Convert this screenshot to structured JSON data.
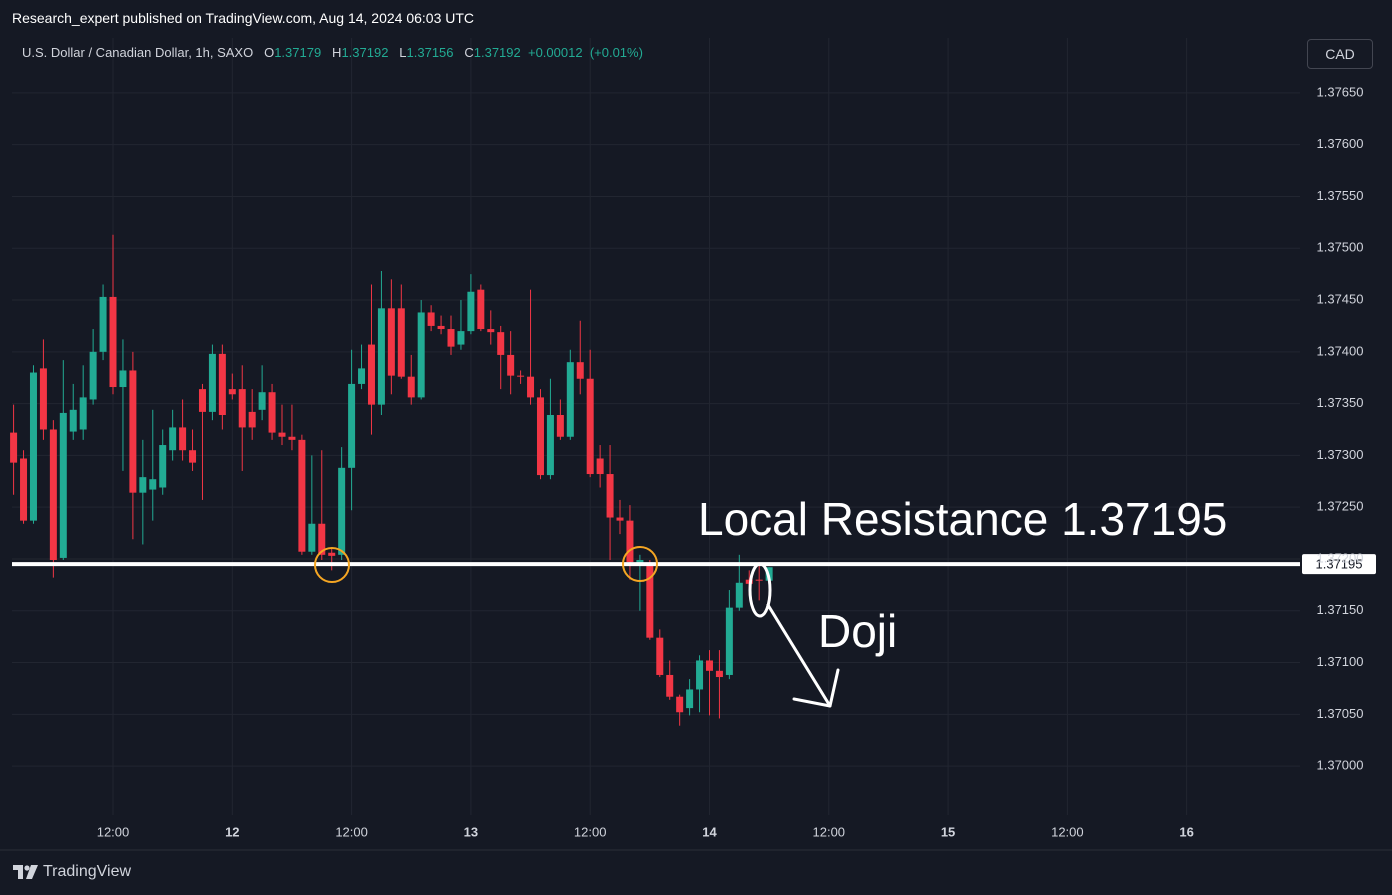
{
  "header": {
    "publisher": "Research_expert published on TradingView.com, Aug 14, 2024 06:03 UTC"
  },
  "legend": {
    "symbol": "U.S. Dollar / Canadian Dollar, 1h, SAXO",
    "open_label": "O",
    "open": 1.37179,
    "high_label": "H",
    "high": 1.37192,
    "low_label": "L",
    "low": 1.37156,
    "close_label": "C",
    "close": 1.37192,
    "change": {
      "value": 0.00012,
      "label": "+0.00012"
    },
    "change_percent": {
      "value": 0.01,
      "label": "(+0.01%)"
    }
  },
  "currency_button": "CAD",
  "brand": "TradingView",
  "chart_data": {
    "type": "candlestick",
    "up_color": "#22ab94",
    "down_color": "#f23645",
    "grid": true,
    "xlim": [
      1.84,
      131.4
    ],
    "xticks": [
      {
        "value": 12,
        "label": "12:00"
      },
      {
        "value": 24,
        "label": "12"
      },
      {
        "value": 36,
        "label": "12:00"
      },
      {
        "value": 48,
        "label": "13"
      },
      {
        "value": 60,
        "label": "12:00"
      },
      {
        "value": 72,
        "label": "14"
      },
      {
        "value": 84,
        "label": "12:00"
      },
      {
        "value": 96,
        "label": "15"
      },
      {
        "value": 108,
        "label": "12:00"
      },
      {
        "value": 120,
        "label": "16"
      }
    ],
    "ylim": [
      1.36919,
      1.37703
    ],
    "yticks": [
      {
        "value": 1.37,
        "label": "1.37000"
      },
      {
        "value": 1.3705,
        "label": "1.37050"
      },
      {
        "value": 1.371,
        "label": "1.37100"
      },
      {
        "value": 1.3715,
        "label": "1.37150"
      },
      {
        "value": 1.372,
        "label": "1.37200"
      },
      {
        "value": 1.3725,
        "label": "1.37250"
      },
      {
        "value": 1.373,
        "label": "1.37300"
      },
      {
        "value": 1.3735,
        "label": "1.37350"
      },
      {
        "value": 1.374,
        "label": "1.37400"
      },
      {
        "value": 1.3745,
        "label": "1.37450"
      },
      {
        "value": 1.375,
        "label": "1.37500"
      },
      {
        "value": 1.3755,
        "label": "1.37550"
      },
      {
        "value": 1.376,
        "label": "1.37600"
      },
      {
        "value": 1.3765,
        "label": "1.37650"
      }
    ],
    "x": [
      2,
      3,
      4,
      5,
      6,
      7,
      8,
      9,
      10,
      11,
      12,
      13,
      14,
      15,
      16,
      17,
      18,
      19,
      20,
      21,
      22,
      23,
      24,
      25,
      26,
      27,
      28,
      29,
      30,
      31,
      32,
      33,
      34,
      35,
      36,
      37,
      38,
      39,
      40,
      41,
      42,
      43,
      44,
      45,
      46,
      47,
      48,
      49,
      50,
      51,
      52,
      53,
      54,
      55,
      56,
      57,
      58,
      59,
      60,
      61,
      62,
      63,
      64,
      65,
      66,
      67,
      68,
      69,
      70,
      71,
      72,
      73,
      74,
      75,
      76,
      77,
      78
    ],
    "open": [
      1.37322,
      1.37297,
      1.37237,
      1.37384,
      1.37325,
      1.37201,
      1.37323,
      1.37325,
      1.37354,
      1.374,
      1.37453,
      1.37366,
      1.37382,
      1.37264,
      1.37267,
      1.37269,
      1.37305,
      1.37327,
      1.37305,
      1.37364,
      1.37342,
      1.37398,
      1.37364,
      1.37364,
      1.37342,
      1.37344,
      1.37361,
      1.37322,
      1.37318,
      1.37315,
      1.37207,
      1.37234,
      1.37206,
      1.37204,
      1.37288,
      1.37369,
      1.37407,
      1.37349,
      1.37442,
      1.37442,
      1.37376,
      1.37356,
      1.37438,
      1.37425,
      1.37422,
      1.37407,
      1.3742,
      1.3746,
      1.37422,
      1.37419,
      1.37397,
      1.37377,
      1.37376,
      1.37356,
      1.37281,
      1.37339,
      1.37318,
      1.3739,
      1.37374,
      1.37297,
      1.37282,
      1.3724,
      1.37237,
      1.37194,
      1.37194,
      1.37124,
      1.37088,
      1.37067,
      1.37056,
      1.37074,
      1.37102,
      1.37092,
      1.37088,
      1.37153,
      1.3718,
      1.3718,
      1.37179
    ],
    "high": [
      1.37349,
      1.37305,
      1.37387,
      1.37412,
      1.37334,
      1.37392,
      1.37369,
      1.37387,
      1.37422,
      1.37465,
      1.37513,
      1.37412,
      1.374,
      1.37315,
      1.37344,
      1.37325,
      1.37344,
      1.37354,
      1.37325,
      1.37369,
      1.37407,
      1.37407,
      1.37379,
      1.37387,
      1.37364,
      1.37387,
      1.37369,
      1.37349,
      1.37349,
      1.3732,
      1.373,
      1.37305,
      1.37211,
      1.37308,
      1.37402,
      1.37407,
      1.37465,
      1.37478,
      1.3747,
      1.37465,
      1.37397,
      1.3745,
      1.37445,
      1.37435,
      1.37435,
      1.3745,
      1.37475,
      1.37465,
      1.3744,
      1.37425,
      1.3742,
      1.37382,
      1.3746,
      1.37364,
      1.37374,
      1.37354,
      1.37402,
      1.3743,
      1.37402,
      1.3731,
      1.3731,
      1.37257,
      1.37252,
      1.37204,
      1.37199,
      1.37132,
      1.37102,
      1.37069,
      1.37084,
      1.37107,
      1.37112,
      1.37112,
      1.3717,
      1.37204,
      1.37189,
      1.37197,
      1.37192
    ],
    "low": [
      1.37262,
      1.37234,
      1.37234,
      1.37315,
      1.37182,
      1.37199,
      1.37315,
      1.37315,
      1.37349,
      1.37392,
      1.37359,
      1.37285,
      1.37219,
      1.37214,
      1.37237,
      1.37262,
      1.37295,
      1.37295,
      1.37285,
      1.37257,
      1.37334,
      1.37325,
      1.37354,
      1.37285,
      1.37315,
      1.37334,
      1.37315,
      1.3731,
      1.37305,
      1.37204,
      1.37204,
      1.37199,
      1.37189,
      1.37199,
      1.37247,
      1.37364,
      1.3732,
      1.37339,
      1.37359,
      1.37374,
      1.37349,
      1.37354,
      1.3742,
      1.37417,
      1.37397,
      1.37402,
      1.37417,
      1.3742,
      1.37407,
      1.37364,
      1.37359,
      1.37369,
      1.37349,
      1.37277,
      1.37277,
      1.37315,
      1.37315,
      1.37359,
      1.37279,
      1.37269,
      1.37199,
      1.37224,
      1.3718,
      1.3715,
      1.37122,
      1.37086,
      1.37064,
      1.37039,
      1.37049,
      1.37052,
      1.37049,
      1.37046,
      1.37084,
      1.3715,
      1.37165,
      1.3716,
      1.37156
    ],
    "close": [
      1.37293,
      1.37237,
      1.3738,
      1.37325,
      1.37199,
      1.37341,
      1.37344,
      1.37356,
      1.374,
      1.37453,
      1.37366,
      1.37382,
      1.37264,
      1.37279,
      1.37277,
      1.3731,
      1.37327,
      1.37305,
      1.37293,
      1.37342,
      1.37398,
      1.37339,
      1.37359,
      1.37327,
      1.37327,
      1.37361,
      1.37322,
      1.37318,
      1.37315,
      1.37207,
      1.37234,
      1.37204,
      1.37203,
      1.37288,
      1.37369,
      1.37384,
      1.37349,
      1.37442,
      1.37377,
      1.37376,
      1.37356,
      1.37438,
      1.37425,
      1.37422,
      1.37405,
      1.3742,
      1.37458,
      1.37422,
      1.37419,
      1.37397,
      1.37377,
      1.37376,
      1.37356,
      1.37281,
      1.37339,
      1.37318,
      1.3739,
      1.37374,
      1.37282,
      1.37282,
      1.3724,
      1.37237,
      1.37197,
      1.37199,
      1.37124,
      1.37088,
      1.37067,
      1.37052,
      1.37074,
      1.37102,
      1.37092,
      1.37086,
      1.37153,
      1.37177,
      1.37176,
      1.37179,
      1.37192
    ],
    "annotations": {
      "resistance": {
        "label": "Local Resistance 1.37195",
        "value": 1.37195,
        "color": "#ffffff"
      },
      "doji_label": "Doji"
    }
  }
}
